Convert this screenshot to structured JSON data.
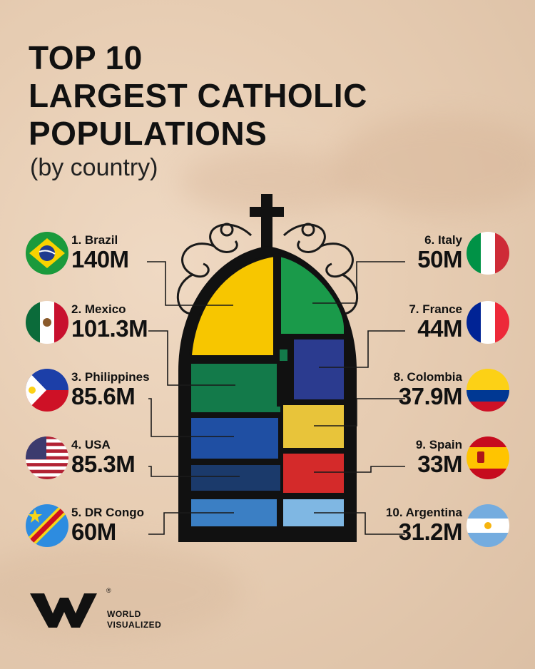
{
  "title_lines": [
    "TOP 10",
    "LARGEST CATHOLIC",
    "POPULATIONS"
  ],
  "subtitle": "(by country)",
  "brand": {
    "line1": "WORLD",
    "line2": "VISUALIZED",
    "registered": "®"
  },
  "chart_data": {
    "type": "bar",
    "title": "TOP 10 LARGEST CATHOLIC POPULATIONS",
    "subtitle": "(by country)",
    "categories": [
      "Brazil",
      "Mexico",
      "Philippines",
      "USA",
      "DR Congo",
      "Italy",
      "France",
      "Colombia",
      "Spain",
      "Argentina"
    ],
    "values": [
      140,
      101.3,
      85.6,
      85.3,
      60,
      50,
      44,
      37.9,
      33,
      31.2
    ],
    "unit": "M",
    "items": [
      {
        "label": "1. Brazil",
        "value_label": "140M",
        "value": 140,
        "color": "#f7c600",
        "flag": "brazil"
      },
      {
        "label": "2. Mexico",
        "value_label": "101.3M",
        "value": 101.3,
        "color": "#137a4a",
        "flag": "mexico"
      },
      {
        "label": "3. Philippines",
        "value_label": "85.6M",
        "value": 85.6,
        "color": "#1f4fa3",
        "flag": "philippines"
      },
      {
        "label": "4. USA",
        "value_label": "85.3M",
        "value": 85.3,
        "color": "#1b3a6b",
        "flag": "usa"
      },
      {
        "label": "5. DR Congo",
        "value_label": "60M",
        "value": 60,
        "color": "#3b7fc4",
        "flag": "drcongo"
      },
      {
        "label": "6. Italy",
        "value_label": "50M",
        "value": 50,
        "color": "#1a9a4a",
        "flag": "italy"
      },
      {
        "label": "7. France",
        "value_label": "44M",
        "value": 44,
        "color": "#2b3b8f",
        "flag": "france"
      },
      {
        "label": "8. Colombia",
        "value_label": "37.9M",
        "value": 37.9,
        "color": "#e8c43a",
        "flag": "colombia"
      },
      {
        "label": "9. Spain",
        "value_label": "33M",
        "value": 33,
        "color": "#d42a2a",
        "flag": "spain"
      },
      {
        "label": "10. Argentina",
        "value_label": "31.2M",
        "value": 31.2,
        "color": "#7fb7e3",
        "flag": "argentina"
      }
    ],
    "colors": {
      "frame": "#111111",
      "background": "#e9d3bd"
    }
  }
}
